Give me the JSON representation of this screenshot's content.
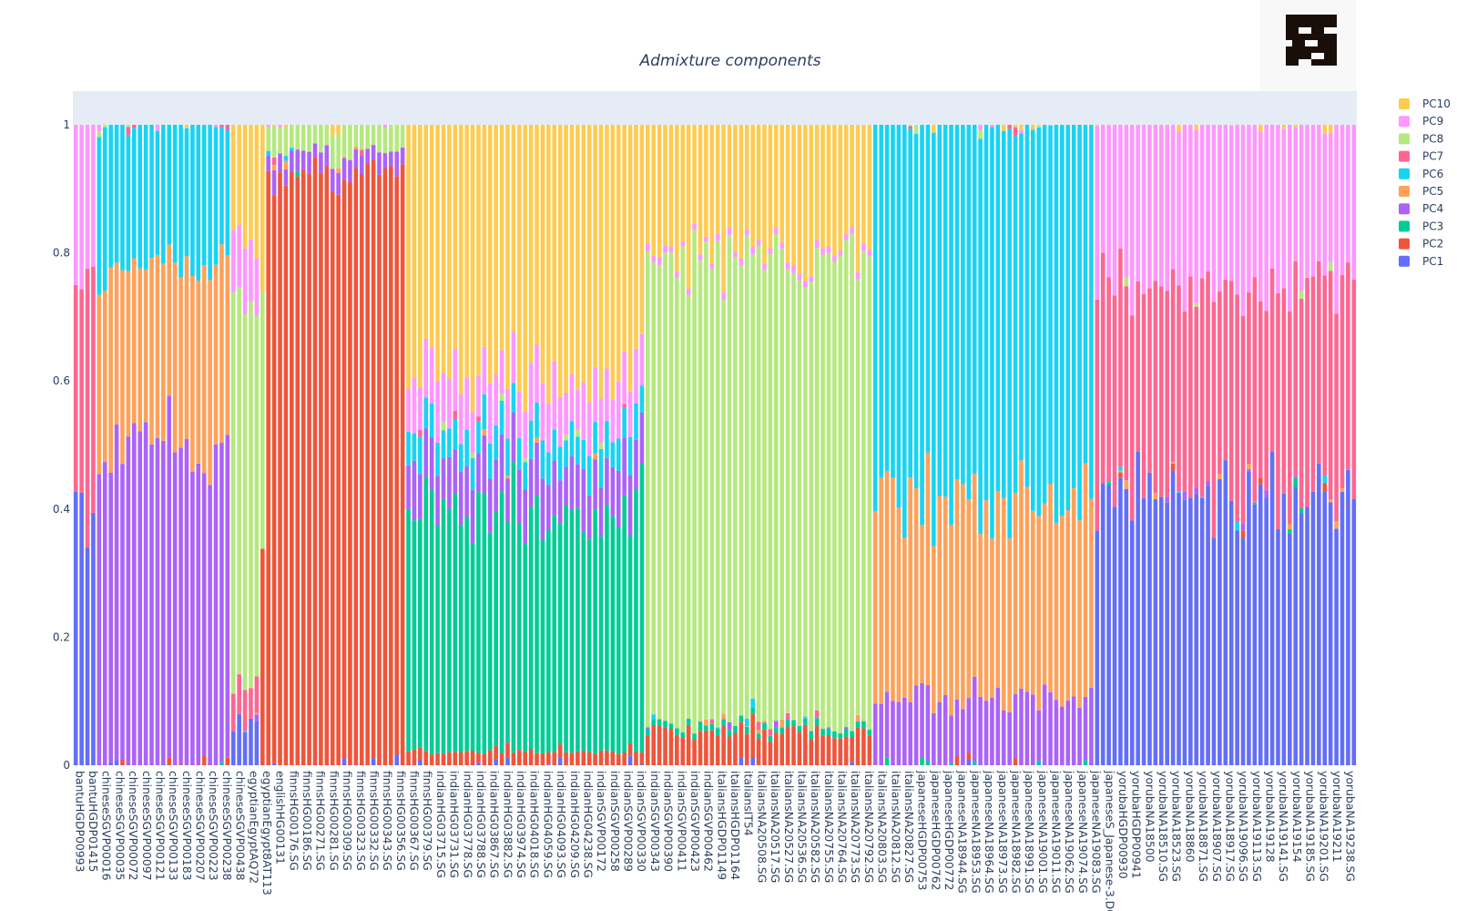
{
  "chart_data": {
    "type": "bar",
    "stacked": true,
    "title": "Admixture components",
    "xlabel": "",
    "ylabel": "",
    "ylim": [
      0,
      1
    ],
    "yticks": [
      "0",
      "0.2",
      "0.4",
      "0.6",
      "0.8",
      "1"
    ],
    "legend_position": "right",
    "legend_order": [
      "PC10",
      "PC9",
      "PC8",
      "PC7",
      "PC6",
      "PC5",
      "PC4",
      "PC3",
      "PC2",
      "PC1"
    ],
    "colors": {
      "PC1": "#636efa",
      "PC2": "#ef553b",
      "PC3": "#00cc96",
      "PC4": "#ab63fa",
      "PC5": "#ffa15a",
      "PC6": "#19d3f3",
      "PC7": "#ff6692",
      "PC8": "#b6e880",
      "PC9": "#ff97ff",
      "PC10": "#fecb52"
    },
    "tick_labels": [
      "bantuHGDP00993",
      "bantuHGDP01415",
      "chineseSGVP00016",
      "chineseSGVP00035",
      "chineseSGVP00072",
      "chineseSGVP00097",
      "chineseSGVP00121",
      "chineseSGVP00133",
      "chineseSGVP00183",
      "chineseSGVP00207",
      "chineseSGVP00223",
      "chineseSGVP00238",
      "chineseSGVP00438",
      "egyptianEgyptAQ72",
      "egyptianEgypt8AT113",
      "englishHG00131",
      "finnsHG00176.SG",
      "finnsHG00186.SG",
      "finnsHG00271.SG",
      "finnsHG00281.SG",
      "finnsHG00309.SG",
      "finnsHG00323.SG",
      "finnsHG00332.SG",
      "finnsHG00343.SG",
      "finnsHG00356.SG",
      "finnsHG00367.SG",
      "finnsHG00379.SG",
      "indianHG03715.SG",
      "indianHG03731.SG",
      "indianHG03778.SG",
      "indianHG03788.SG",
      "indianHG03867.SG",
      "indianHG03882.SG",
      "indianHG03974.SG",
      "indianHG04018.SG",
      "indianHG04059.SG",
      "indianHG04093.SG",
      "indianHG04209.SG",
      "indianHG04238.SG",
      "indianSGVP00172",
      "indianSGVP00258",
      "indianSGVP00289",
      "indianSGVP00330",
      "indianSGVP00343",
      "indianSGVP00390",
      "indianSGVP00411",
      "indianSGVP00423",
      "indianSGVP00462",
      "italiansHGDP01149",
      "italiansHGDP01164",
      "italiansIT54",
      "italiansNA20508.SG",
      "italiansNA20517.SG",
      "italiansNA20527.SG",
      "italiansNA20536.SG",
      "italiansNA20582.SG",
      "italiansNA20755.SG",
      "italiansNA20764.SG",
      "italiansNA20773.SG",
      "italiansNA20792.SG",
      "italiansNA20803.SG",
      "italiansNA20812.SG",
      "italiansNA20827.SG",
      "japaneseHGDP00753",
      "japaneseHGDP00762",
      "japaneseHGDP00772",
      "japaneseNA18944.SG",
      "japaneseNA18953.SG",
      "japaneseNA18964.SG",
      "japaneseNA18973.SG",
      "japaneseNA18982.SG",
      "japaneseNA18991.SG",
      "japaneseNA19001.SG",
      "japaneseNA19011.SG",
      "japaneseNA19062.SG",
      "japaneseNA19074.SG",
      "japaneseNA19083.SG",
      "japaneseS_Japanese-3.DG",
      "yorubaHGDP00930",
      "yorubaHGDP00941",
      "yorubaNA18500",
      "yorubaNA18510.SG",
      "yorubaNA18523.SG",
      "yorubaNA18860",
      "yorubaNA18871.SG",
      "yorubaNA18907.SG",
      "yorubaNA18917.SG",
      "yorubaNA19096.SG",
      "yorubaNA19113.SG",
      "yorubaNA19128",
      "yorubaNA19141.SG",
      "yorubaNA19154",
      "yorubaNA19185.SG",
      "yorubaNA19201.SG",
      "yorubaNA19211",
      "yorubaNA19238.SG"
    ],
    "population_profiles": [
      {
        "group": "bantu",
        "samples": 4,
        "values": {
          "PC1": 0.4,
          "PC7": 0.37,
          "PC9": 0.23
        }
      },
      {
        "group": "chinese",
        "samples": 23,
        "values": {
          "PC4": 0.5,
          "PC5": 0.28,
          "PC6": 0.22
        }
      },
      {
        "group": "egyptian",
        "samples": 5,
        "values": {
          "PC1": 0.07,
          "PC7": 0.06,
          "PC8": 0.58,
          "PC9": 0.11,
          "PC10": 0.18
        }
      },
      {
        "group": "english",
        "samples": 1,
        "values": {
          "PC2": 0.35,
          "PC8": 0.4,
          "PC10": 0.25
        }
      },
      {
        "group": "finns",
        "samples": 24,
        "values": {
          "PC2": 0.93,
          "PC8": 0.04,
          "PC4": 0.03
        }
      },
      {
        "group": "indian",
        "samples": 41,
        "values": {
          "PC2": 0.02,
          "PC3": 0.38,
          "PC4": 0.08,
          "PC6": 0.05,
          "PC9": 0.08,
          "PC10": 0.39
        }
      },
      {
        "group": "italians",
        "samples": 39,
        "values": {
          "PC2": 0.05,
          "PC3": 0.01,
          "PC8": 0.73,
          "PC9": 0.01,
          "PC10": 0.2
        }
      },
      {
        "group": "japanese",
        "samples": 38,
        "values": {
          "PC4": 0.1,
          "PC5": 0.3,
          "PC6": 0.6
        }
      },
      {
        "group": "yoruba",
        "samples": 45,
        "values": {
          "PC1": 0.42,
          "PC7": 0.33,
          "PC9": 0.25
        }
      }
    ]
  }
}
